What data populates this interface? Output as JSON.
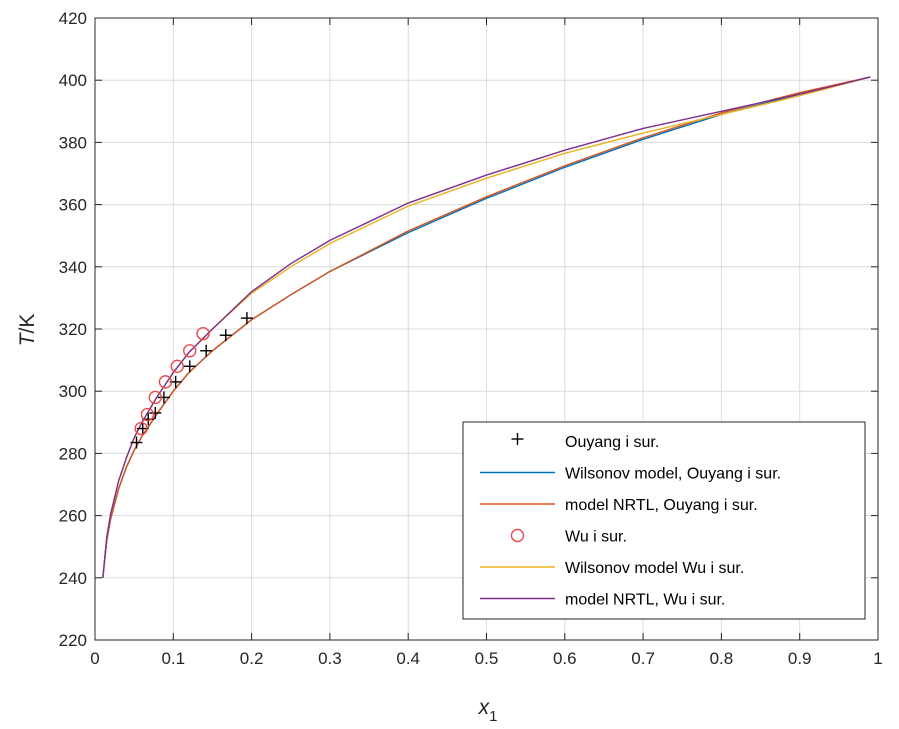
{
  "chart_data": {
    "type": "line",
    "xlabel": "x",
    "xlabel_sub": "1",
    "ylabel_italic": "T",
    "ylabel_rest": "/K",
    "xlim": [
      0,
      1
    ],
    "ylim": [
      220,
      420
    ],
    "xticks": [
      0,
      0.1,
      0.2,
      0.3,
      0.4,
      0.5,
      0.6,
      0.7,
      0.8,
      0.9,
      1
    ],
    "xtick_labels": [
      "0",
      "0.1",
      "0.2",
      "0.3",
      "0.4",
      "0.5",
      "0.6",
      "0.7",
      "0.8",
      "0.9",
      "1"
    ],
    "yticks": [
      220,
      240,
      260,
      280,
      300,
      320,
      340,
      360,
      380,
      400,
      420
    ],
    "ytick_labels": [
      "220",
      "240",
      "260",
      "280",
      "300",
      "320",
      "340",
      "360",
      "380",
      "400",
      "420"
    ],
    "grid": true,
    "legend_position": "bottom-right",
    "colors": {
      "blue": "#0072BD",
      "orange": "#D95319",
      "yellow": "#EDB120",
      "purple": "#7E2F8E",
      "black": "#000000",
      "red_marker": "#E84A4A"
    },
    "series": [
      {
        "name": "Ouyang i sur.",
        "kind": "marker-plus",
        "color": "#000000",
        "x": [
          0.053,
          0.061,
          0.068,
          0.077,
          0.088,
          0.103,
          0.121,
          0.142,
          0.167,
          0.194
        ],
        "y": [
          283.5,
          288,
          291,
          293,
          298,
          303,
          308,
          313,
          318,
          323.5
        ]
      },
      {
        "name": "Wilsonov model, Ouyang i sur.",
        "kind": "line",
        "color": "#0072BD",
        "x": [
          0.01,
          0.015,
          0.02,
          0.03,
          0.04,
          0.05,
          0.06,
          0.08,
          0.1,
          0.12,
          0.15,
          0.2,
          0.25,
          0.3,
          0.4,
          0.5,
          0.6,
          0.7,
          0.8,
          0.9,
          0.99
        ],
        "y": [
          240,
          252,
          259,
          268.5,
          275.5,
          281,
          285.5,
          293,
          300,
          306,
          313,
          323,
          331,
          338.5,
          351,
          362,
          372,
          381,
          389,
          395.5,
          401
        ]
      },
      {
        "name": "model NRTL, Ouyang i sur.",
        "kind": "line",
        "color": "#D95319",
        "x": [
          0.01,
          0.015,
          0.02,
          0.03,
          0.04,
          0.05,
          0.06,
          0.08,
          0.1,
          0.12,
          0.15,
          0.2,
          0.25,
          0.3,
          0.4,
          0.5,
          0.6,
          0.7,
          0.8,
          0.9,
          0.99
        ],
        "y": [
          240,
          252,
          259,
          268.5,
          275.5,
          281,
          285.5,
          293,
          300,
          306,
          313,
          323,
          331,
          338.5,
          351.5,
          362.5,
          372.5,
          381.5,
          389.5,
          396,
          401
        ]
      },
      {
        "name": "Wu i sur.",
        "kind": "marker-circle",
        "color": "#E84A4A",
        "x": [
          0.059,
          0.067,
          0.077,
          0.09,
          0.105,
          0.121,
          0.138
        ],
        "y": [
          288,
          292.5,
          298,
          303,
          308,
          313,
          318.5
        ]
      },
      {
        "name": "Wilsonov model Wu i sur.",
        "kind": "line",
        "color": "#EDB120",
        "x": [
          0.01,
          0.015,
          0.02,
          0.03,
          0.04,
          0.05,
          0.06,
          0.08,
          0.1,
          0.12,
          0.15,
          0.2,
          0.25,
          0.3,
          0.4,
          0.5,
          0.6,
          0.7,
          0.8,
          0.9,
          0.99
        ],
        "y": [
          240,
          253,
          260.5,
          271,
          278.5,
          285,
          290,
          298.5,
          306,
          312.5,
          320,
          331.5,
          340,
          347.5,
          359.5,
          368.5,
          376.5,
          383,
          389,
          395,
          401
        ]
      },
      {
        "name": "model NRTL, Wu i sur.",
        "kind": "line",
        "color": "#7E2F8E",
        "x": [
          0.01,
          0.015,
          0.02,
          0.03,
          0.04,
          0.05,
          0.06,
          0.08,
          0.1,
          0.12,
          0.15,
          0.2,
          0.25,
          0.3,
          0.4,
          0.5,
          0.6,
          0.7,
          0.8,
          0.9,
          0.99
        ],
        "y": [
          240,
          253,
          260.5,
          271,
          278.5,
          285,
          290,
          298.5,
          306,
          312.5,
          320,
          332,
          341,
          348.5,
          360.5,
          369.5,
          377.5,
          384.5,
          390,
          395.5,
          401
        ]
      }
    ]
  }
}
